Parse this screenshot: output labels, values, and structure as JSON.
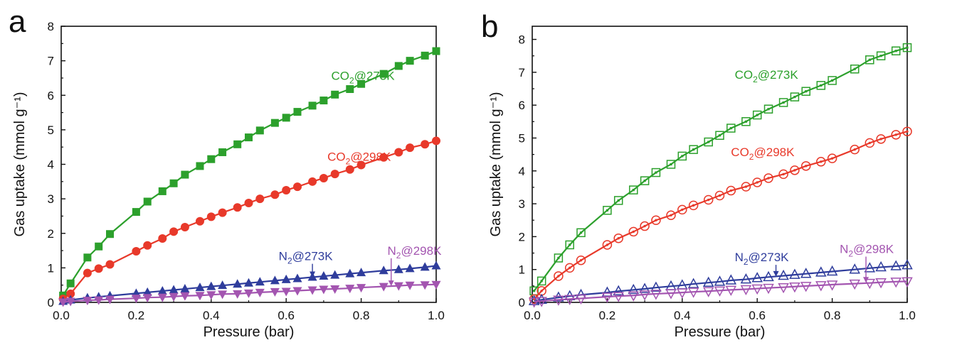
{
  "chart_data": [
    {
      "panel": "a",
      "type": "scatter",
      "xlabel": "Pressure (bar)",
      "ylabel": "Gas uptake (mmol g⁻¹)",
      "xlim": [
        0.0,
        1.0
      ],
      "ylim": [
        0,
        8
      ],
      "xticks": [
        "0.0",
        "0.2",
        "0.4",
        "0.6",
        "0.8",
        "1.0"
      ],
      "yticks": [
        "0",
        "1",
        "2",
        "3",
        "4",
        "5",
        "6",
        "7",
        "8"
      ],
      "grid": false,
      "marker_fill": "filled",
      "series": [
        {
          "name": "CO₂@273K",
          "color": "#2ca02c",
          "marker": "square",
          "x": [
            0.005,
            0.025,
            0.07,
            0.1,
            0.13,
            0.2,
            0.23,
            0.27,
            0.3,
            0.33,
            0.37,
            0.4,
            0.43,
            0.47,
            0.5,
            0.53,
            0.57,
            0.6,
            0.63,
            0.67,
            0.7,
            0.73,
            0.77,
            0.8,
            0.86,
            0.9,
            0.93,
            0.97,
            1.0
          ],
          "y": [
            0.2,
            0.55,
            1.3,
            1.62,
            1.98,
            2.62,
            2.92,
            3.22,
            3.45,
            3.7,
            3.95,
            4.15,
            4.35,
            4.58,
            4.78,
            4.98,
            5.2,
            5.35,
            5.52,
            5.7,
            5.85,
            6.02,
            6.18,
            6.33,
            6.62,
            6.85,
            7.0,
            7.15,
            7.28
          ]
        },
        {
          "name": "CO₂@298K",
          "color": "#e8392a",
          "marker": "circle",
          "x": [
            0.005,
            0.025,
            0.07,
            0.1,
            0.13,
            0.2,
            0.23,
            0.27,
            0.3,
            0.33,
            0.37,
            0.4,
            0.43,
            0.47,
            0.5,
            0.53,
            0.57,
            0.6,
            0.63,
            0.67,
            0.7,
            0.73,
            0.77,
            0.8,
            0.86,
            0.9,
            0.93,
            0.97,
            1.0
          ],
          "y": [
            0.1,
            0.25,
            0.85,
            0.98,
            1.1,
            1.48,
            1.65,
            1.85,
            2.05,
            2.18,
            2.35,
            2.48,
            2.6,
            2.75,
            2.88,
            3.0,
            3.12,
            3.25,
            3.35,
            3.5,
            3.6,
            3.72,
            3.85,
            3.98,
            4.2,
            4.35,
            4.48,
            4.58,
            4.68
          ]
        },
        {
          "name": "N₂@273K",
          "color": "#2f3d9c",
          "marker": "triangle-up",
          "x": [
            0.005,
            0.025,
            0.07,
            0.1,
            0.13,
            0.2,
            0.23,
            0.27,
            0.3,
            0.33,
            0.37,
            0.4,
            0.43,
            0.47,
            0.5,
            0.53,
            0.57,
            0.6,
            0.63,
            0.67,
            0.7,
            0.73,
            0.77,
            0.8,
            0.86,
            0.9,
            0.93,
            0.97,
            1.0
          ],
          "y": [
            0.03,
            0.07,
            0.13,
            0.16,
            0.19,
            0.26,
            0.29,
            0.33,
            0.36,
            0.39,
            0.43,
            0.46,
            0.49,
            0.53,
            0.56,
            0.59,
            0.63,
            0.66,
            0.69,
            0.73,
            0.76,
            0.79,
            0.83,
            0.86,
            0.92,
            0.95,
            0.98,
            1.02,
            1.06
          ]
        },
        {
          "name": "N₂@298K",
          "color": "#a355b0",
          "marker": "triangle-down",
          "x": [
            0.005,
            0.025,
            0.07,
            0.1,
            0.13,
            0.2,
            0.23,
            0.27,
            0.3,
            0.33,
            0.37,
            0.4,
            0.43,
            0.47,
            0.5,
            0.53,
            0.57,
            0.6,
            0.63,
            0.67,
            0.7,
            0.73,
            0.77,
            0.8,
            0.86,
            0.9,
            0.93,
            0.97,
            1.0
          ],
          "y": [
            0.01,
            0.03,
            0.06,
            0.07,
            0.09,
            0.12,
            0.14,
            0.15,
            0.17,
            0.19,
            0.2,
            0.22,
            0.24,
            0.25,
            0.27,
            0.29,
            0.31,
            0.32,
            0.34,
            0.36,
            0.38,
            0.39,
            0.41,
            0.43,
            0.46,
            0.48,
            0.5,
            0.51,
            0.52
          ]
        }
      ],
      "annotations": [
        {
          "series": 0,
          "base": "CO",
          "sub": "2",
          "rest": "@273K",
          "color": "#2ca02c",
          "label_x": 0.72,
          "label_y": 6.45
        },
        {
          "series": 1,
          "base": "CO",
          "sub": "2",
          "rest": "@298K",
          "color": "#e8392a",
          "label_x": 0.71,
          "label_y": 4.1
        },
        {
          "series": 2,
          "base": "N",
          "sub": "2",
          "rest": "@273K",
          "color": "#2f3d9c",
          "label_x": 0.58,
          "label_y": 1.22,
          "arrow_to": [
            0.67,
            0.73
          ]
        },
        {
          "series": 3,
          "base": "N",
          "sub": "2",
          "rest": "@298K",
          "color": "#a355b0",
          "label_x": 0.87,
          "label_y": 1.38,
          "arrow_to": [
            0.88,
            0.47
          ]
        }
      ]
    },
    {
      "panel": "b",
      "type": "scatter",
      "xlabel": "Pressure (bar)",
      "ylabel": "Gas uptake (mmol g⁻¹)",
      "xlim": [
        0.0,
        1.0
      ],
      "ylim": [
        0,
        8.4
      ],
      "xticks": [
        "0.0",
        "0.2",
        "0.4",
        "0.6",
        "0.8",
        "1.0"
      ],
      "yticks": [
        "0",
        "1",
        "2",
        "3",
        "4",
        "5",
        "6",
        "7",
        "8"
      ],
      "grid": false,
      "marker_fill": "open",
      "series": [
        {
          "name": "CO₂@273K",
          "color": "#2ca02c",
          "marker": "square",
          "x": [
            0.005,
            0.025,
            0.07,
            0.1,
            0.13,
            0.2,
            0.23,
            0.27,
            0.3,
            0.33,
            0.37,
            0.4,
            0.43,
            0.47,
            0.5,
            0.53,
            0.57,
            0.6,
            0.63,
            0.67,
            0.7,
            0.73,
            0.77,
            0.8,
            0.86,
            0.9,
            0.93,
            0.97,
            1.0
          ],
          "y": [
            0.35,
            0.65,
            1.35,
            1.75,
            2.12,
            2.8,
            3.1,
            3.42,
            3.7,
            3.95,
            4.2,
            4.45,
            4.65,
            4.88,
            5.08,
            5.3,
            5.5,
            5.7,
            5.88,
            6.08,
            6.25,
            6.42,
            6.6,
            6.75,
            7.1,
            7.38,
            7.5,
            7.65,
            7.75
          ]
        },
        {
          "name": "CO₂@298K",
          "color": "#e8392a",
          "marker": "circle",
          "x": [
            0.005,
            0.025,
            0.07,
            0.1,
            0.13,
            0.2,
            0.23,
            0.27,
            0.3,
            0.33,
            0.37,
            0.4,
            0.43,
            0.47,
            0.5,
            0.53,
            0.57,
            0.6,
            0.63,
            0.67,
            0.7,
            0.73,
            0.77,
            0.8,
            0.86,
            0.9,
            0.93,
            0.97,
            1.0
          ],
          "y": [
            0.1,
            0.35,
            0.8,
            1.05,
            1.28,
            1.75,
            1.95,
            2.15,
            2.32,
            2.5,
            2.65,
            2.82,
            2.95,
            3.12,
            3.25,
            3.4,
            3.52,
            3.65,
            3.78,
            3.9,
            4.02,
            4.15,
            4.28,
            4.38,
            4.65,
            4.85,
            4.97,
            5.1,
            5.2
          ]
        },
        {
          "name": "N₂@273K",
          "color": "#2f3d9c",
          "marker": "triangle-up",
          "x": [
            0.005,
            0.025,
            0.07,
            0.1,
            0.13,
            0.2,
            0.23,
            0.27,
            0.3,
            0.33,
            0.37,
            0.4,
            0.43,
            0.47,
            0.5,
            0.53,
            0.57,
            0.6,
            0.63,
            0.67,
            0.7,
            0.73,
            0.77,
            0.8,
            0.86,
            0.9,
            0.93,
            0.97,
            1.0
          ],
          "y": [
            0.04,
            0.08,
            0.15,
            0.19,
            0.23,
            0.3,
            0.34,
            0.38,
            0.41,
            0.45,
            0.49,
            0.52,
            0.56,
            0.6,
            0.63,
            0.67,
            0.7,
            0.74,
            0.77,
            0.81,
            0.84,
            0.87,
            0.91,
            0.94,
            1.0,
            1.04,
            1.07,
            1.1,
            1.13
          ]
        },
        {
          "name": "N₂@298K",
          "color": "#a355b0",
          "marker": "triangle-down",
          "x": [
            0.005,
            0.025,
            0.07,
            0.1,
            0.13,
            0.2,
            0.23,
            0.27,
            0.3,
            0.33,
            0.37,
            0.4,
            0.43,
            0.47,
            0.5,
            0.53,
            0.57,
            0.6,
            0.63,
            0.67,
            0.7,
            0.73,
            0.77,
            0.8,
            0.86,
            0.9,
            0.93,
            0.97,
            1.0
          ],
          "y": [
            0.02,
            0.04,
            0.08,
            0.1,
            0.12,
            0.17,
            0.19,
            0.21,
            0.24,
            0.26,
            0.28,
            0.3,
            0.32,
            0.34,
            0.36,
            0.38,
            0.4,
            0.42,
            0.44,
            0.46,
            0.48,
            0.5,
            0.52,
            0.54,
            0.57,
            0.59,
            0.61,
            0.63,
            0.64
          ]
        }
      ],
      "annotations": [
        {
          "series": 0,
          "base": "CO",
          "sub": "2",
          "rest": "@273K",
          "color": "#2ca02c",
          "label_x": 0.54,
          "label_y": 6.8
        },
        {
          "series": 1,
          "base": "CO",
          "sub": "2",
          "rest": "@298K",
          "color": "#e8392a",
          "label_x": 0.53,
          "label_y": 4.45
        },
        {
          "series": 2,
          "base": "N",
          "sub": "2",
          "rest": "@273K",
          "color": "#2f3d9c",
          "label_x": 0.54,
          "label_y": 1.25,
          "arrow_to": [
            0.65,
            0.78
          ]
        },
        {
          "series": 3,
          "base": "N",
          "sub": "2",
          "rest": "@298K",
          "color": "#a355b0",
          "label_x": 0.82,
          "label_y": 1.5,
          "arrow_to": [
            0.89,
            0.6
          ]
        }
      ]
    }
  ]
}
